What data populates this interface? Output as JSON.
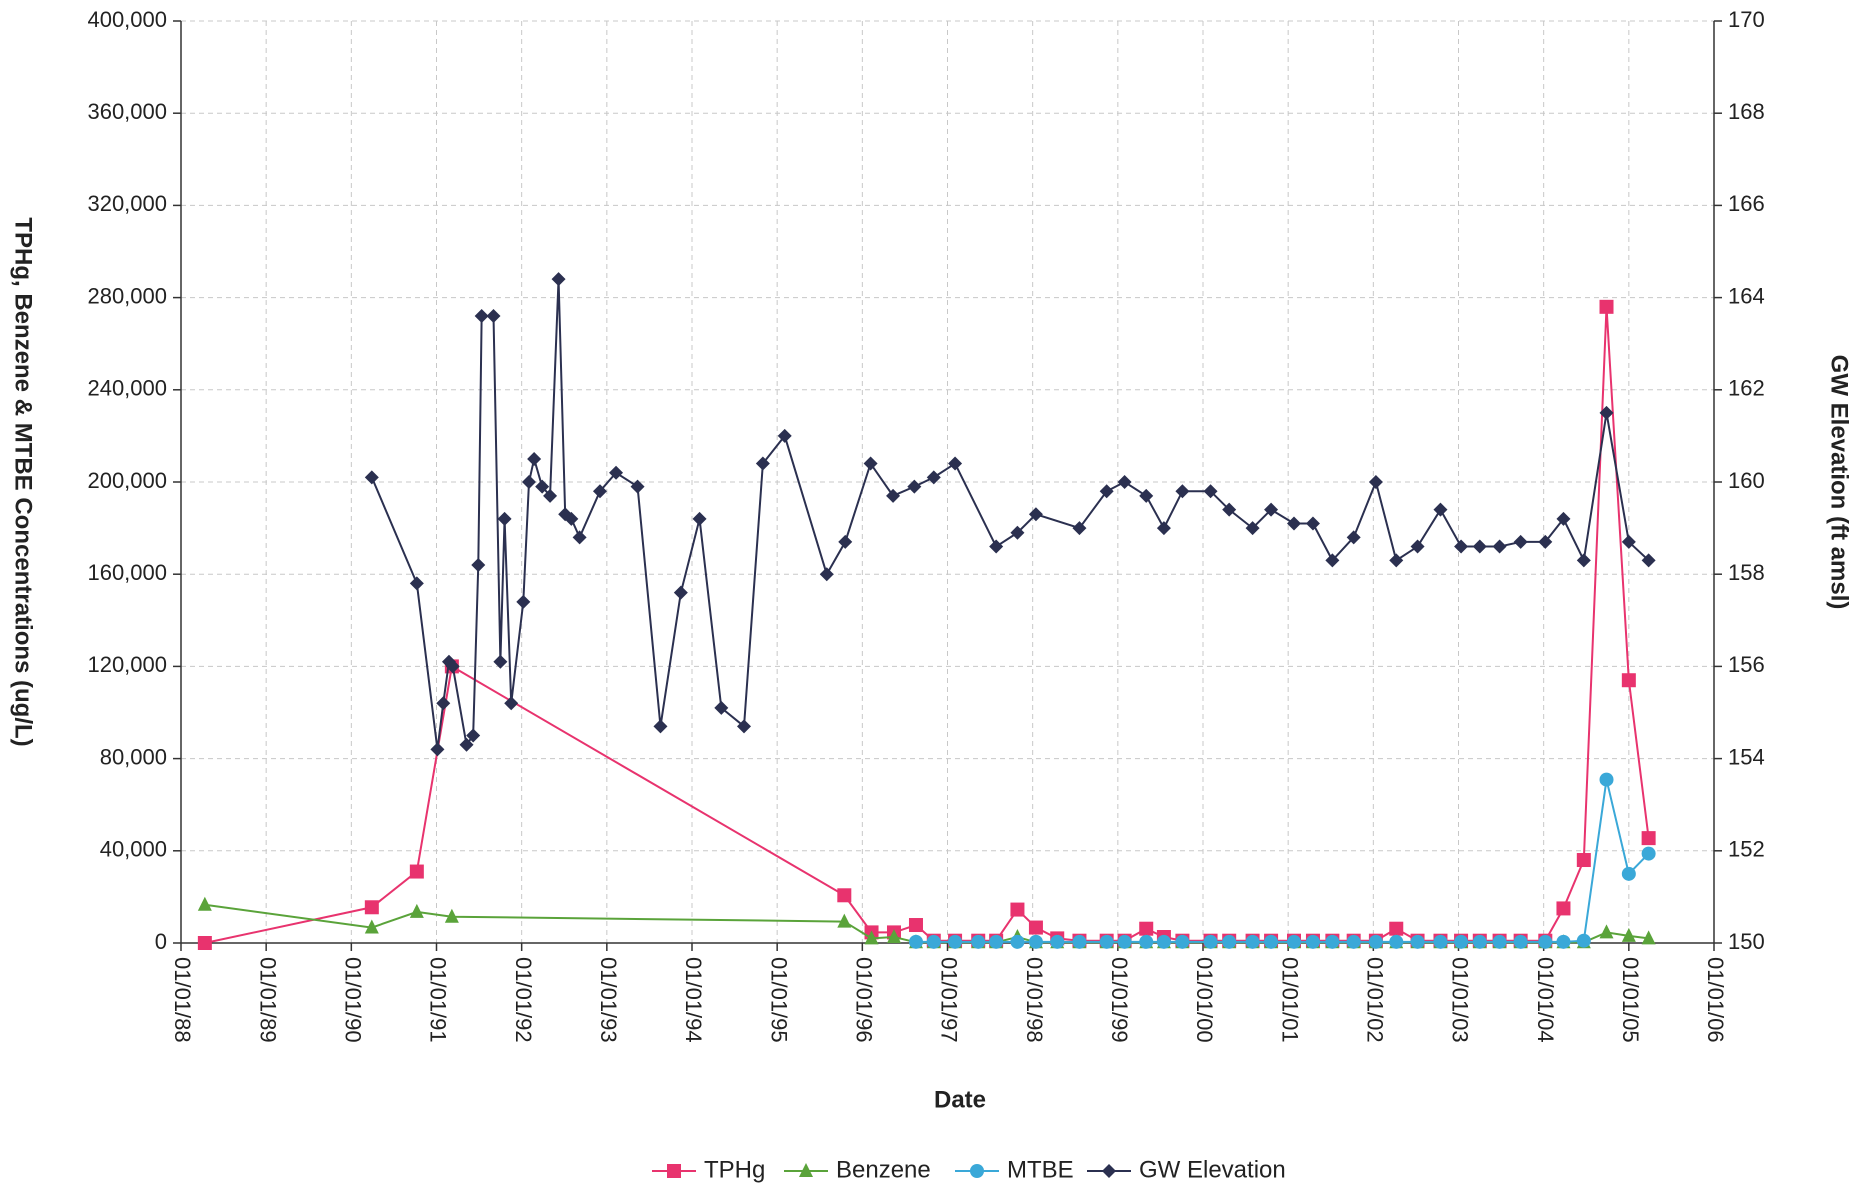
{
  "chart_data": {
    "type": "line",
    "x_label": "Date",
    "y_label": "TPHg, Benzene & MTBE Concentrations (ug/L)",
    "y2_label": "GW Elevation (ft amsl)",
    "xlim": [
      "01/01/88",
      "01/01/06"
    ],
    "xticks": [
      "01/01/88",
      "01/01/89",
      "01/01/90",
      "01/01/91",
      "01/01/92",
      "01/01/93",
      "01/01/94",
      "01/01/95",
      "01/01/96",
      "01/01/97",
      "01/01/98",
      "01/01/99",
      "01/01/00",
      "01/01/01",
      "01/01/02",
      "01/01/03",
      "01/01/04",
      "01/01/05",
      "01/01/06"
    ],
    "ylim": [
      0,
      400000
    ],
    "yticks": [
      {
        "value": 0,
        "label": "0"
      },
      {
        "value": 40000,
        "label": "40,000"
      },
      {
        "value": 80000,
        "label": "80,000"
      },
      {
        "value": 120000,
        "label": "120,000"
      },
      {
        "value": 160000,
        "label": "160,000"
      },
      {
        "value": 200000,
        "label": "200,000"
      },
      {
        "value": 240000,
        "label": "240,000"
      },
      {
        "value": 280000,
        "label": "280,000"
      },
      {
        "value": 320000,
        "label": "320,000"
      },
      {
        "value": 360000,
        "label": "360,000"
      },
      {
        "value": 400000,
        "label": "400,000"
      }
    ],
    "y2lim": [
      150,
      170
    ],
    "y2ticks": [
      150,
      152,
      154,
      156,
      158,
      160,
      162,
      164,
      166,
      168,
      170
    ],
    "grid": true,
    "legend": "bottom",
    "series": [
      {
        "name": "TPHg",
        "color": "#e8336e",
        "marker": "square",
        "x": [
          "04/12/88",
          "03/28/90",
          "10/08/90",
          "03/06/91",
          "10/15/95",
          "02/10/96",
          "05/15/96",
          "08/18/96",
          "11/03/96",
          "02/03/97",
          "05/11/97",
          "07/27/97",
          "10/27/97",
          "01/15/98",
          "04/15/98",
          "07/19/98",
          "11/14/98",
          "01/30/99",
          "05/01/99",
          "07/16/99",
          "10/04/99",
          "02/03/00",
          "04/22/00",
          "07/31/00",
          "10/19/00",
          "01/26/01",
          "04/16/01",
          "07/08/01",
          "10/08/01",
          "01/12/02",
          "04/08/02",
          "07/08/02",
          "10/15/02",
          "01/12/03",
          "04/01/03",
          "06/25/03",
          "09/24/03",
          "01/08/04",
          "03/25/04",
          "06/21/04",
          "09/27/04",
          "01/01/05",
          "03/25/05"
        ],
        "values": [
          0,
          15500,
          31000,
          120000,
          20700,
          4600,
          4600,
          7800,
          1000,
          1000,
          1000,
          1000,
          14500,
          6700,
          2000,
          1000,
          1000,
          1000,
          6200,
          2600,
          1000,
          1000,
          1000,
          1000,
          1000,
          1000,
          1000,
          1000,
          1000,
          1000,
          6200,
          1000,
          1000,
          1000,
          1000,
          1000,
          1000,
          1000,
          15000,
          36000,
          276000,
          114000,
          45500
        ]
      },
      {
        "name": "Benzene",
        "color": "#5aa33a",
        "marker": "triangle",
        "x": [
          "04/12/88",
          "03/28/90",
          "10/08/90",
          "03/06/91",
          "10/15/95",
          "02/10/96",
          "05/15/96",
          "08/18/96",
          "11/03/96",
          "02/03/97",
          "05/11/97",
          "07/27/97",
          "10/27/97",
          "01/15/98",
          "04/15/98",
          "07/19/98",
          "11/14/98",
          "01/30/99",
          "05/01/99",
          "07/16/99",
          "10/04/99",
          "02/03/00",
          "04/22/00",
          "07/31/00",
          "10/19/00",
          "01/26/01",
          "04/16/01",
          "07/08/01",
          "10/08/01",
          "01/12/02",
          "04/08/02",
          "07/08/02",
          "10/15/02",
          "01/12/03",
          "04/01/03",
          "06/25/03",
          "09/24/03",
          "01/08/04",
          "03/25/04",
          "06/21/04",
          "09/27/04",
          "01/01/05",
          "03/25/05"
        ],
        "values": [
          16600,
          6700,
          13500,
          11400,
          9300,
          2000,
          2600,
          300,
          300,
          300,
          300,
          300,
          2600,
          300,
          300,
          300,
          300,
          300,
          300,
          300,
          300,
          300,
          300,
          300,
          300,
          300,
          300,
          300,
          300,
          300,
          300,
          300,
          300,
          300,
          300,
          300,
          300,
          300,
          300,
          300,
          4600,
          3100,
          2000
        ]
      },
      {
        "name": "MTBE",
        "color": "#3aa8d8",
        "marker": "circle",
        "x": [
          "08/18/96",
          "11/03/96",
          "02/03/97",
          "05/11/97",
          "07/27/97",
          "10/27/97",
          "01/15/98",
          "04/15/98",
          "07/19/98",
          "11/14/98",
          "01/30/99",
          "05/01/99",
          "07/16/99",
          "10/04/99",
          "02/03/00",
          "04/22/00",
          "07/31/00",
          "10/19/00",
          "01/26/01",
          "04/16/01",
          "07/08/01",
          "10/08/01",
          "01/12/02",
          "04/08/02",
          "07/08/02",
          "10/15/02",
          "01/12/03",
          "04/01/03",
          "06/25/03",
          "09/24/03",
          "01/08/04",
          "03/25/04",
          "06/21/04",
          "09/27/04",
          "01/01/05",
          "03/25/05"
        ],
        "values": [
          500,
          500,
          500,
          500,
          500,
          500,
          500,
          500,
          500,
          500,
          500,
          500,
          500,
          500,
          500,
          500,
          500,
          500,
          500,
          500,
          500,
          500,
          500,
          500,
          500,
          500,
          500,
          500,
          500,
          500,
          500,
          500,
          1000,
          70900,
          30000,
          38800
        ]
      },
      {
        "name": "GW Elevation",
        "color": "#2b3050",
        "marker": "diamond",
        "axis": "y2",
        "x": [
          "03/28/90",
          "10/08/90",
          "01/05/91",
          "01/30/91",
          "02/24/91",
          "03/10/91",
          "05/08/91",
          "06/06/91",
          "06/28/91",
          "07/12/91",
          "09/02/91",
          "10/01/91",
          "10/19/91",
          "11/17/91",
          "01/08/92",
          "02/02/92",
          "02/24/92",
          "03/28/92",
          "05/01/92",
          "06/07/92",
          "07/05/92",
          "08/01/92",
          "09/06/92",
          "12/02/92",
          "02/10/93",
          "05/11/93",
          "08/18/93",
          "11/14/93",
          "02/03/94",
          "05/05/94",
          "08/11/94",
          "10/31/94",
          "02/03/95",
          "07/31/95",
          "10/19/95",
          "02/06/96",
          "05/11/96",
          "08/11/96",
          "11/03/96",
          "02/03/97",
          "07/27/97",
          "10/27/97",
          "01/15/98",
          "07/19/98",
          "11/14/98",
          "01/30/99",
          "05/01/99",
          "07/16/99",
          "10/04/99",
          "02/03/00",
          "04/22/00",
          "07/31/00",
          "10/19/00",
          "01/26/01",
          "04/16/01",
          "07/08/01",
          "10/08/01",
          "01/12/02",
          "04/08/02",
          "07/08/02",
          "10/15/02",
          "01/12/03",
          "04/01/03",
          "06/25/03",
          "09/24/03",
          "01/08/04",
          "03/25/04",
          "06/21/04",
          "09/27/04",
          "01/01/05",
          "03/25/05"
        ],
        "values": [
          160.1,
          157.8,
          154.2,
          155.2,
          156.1,
          156.0,
          154.3,
          154.5,
          158.2,
          163.6,
          163.6,
          156.1,
          159.2,
          155.2,
          157.4,
          160.0,
          160.5,
          159.9,
          159.7,
          164.4,
          159.3,
          159.2,
          158.8,
          159.8,
          160.2,
          159.9,
          154.7,
          157.6,
          159.2,
          155.1,
          154.7,
          160.4,
          161.0,
          158.0,
          158.7,
          160.4,
          159.7,
          159.9,
          160.1,
          160.4,
          158.6,
          158.9,
          159.3,
          159.0,
          159.8,
          160.0,
          159.7,
          159.0,
          159.8,
          159.8,
          159.4,
          159.0,
          159.4,
          159.1,
          159.1,
          158.3,
          158.8,
          160.0,
          158.3,
          158.6,
          159.4,
          158.6,
          158.6,
          158.6,
          158.7,
          158.7,
          159.2,
          158.3,
          161.5,
          158.7,
          158.3
        ]
      }
    ]
  }
}
